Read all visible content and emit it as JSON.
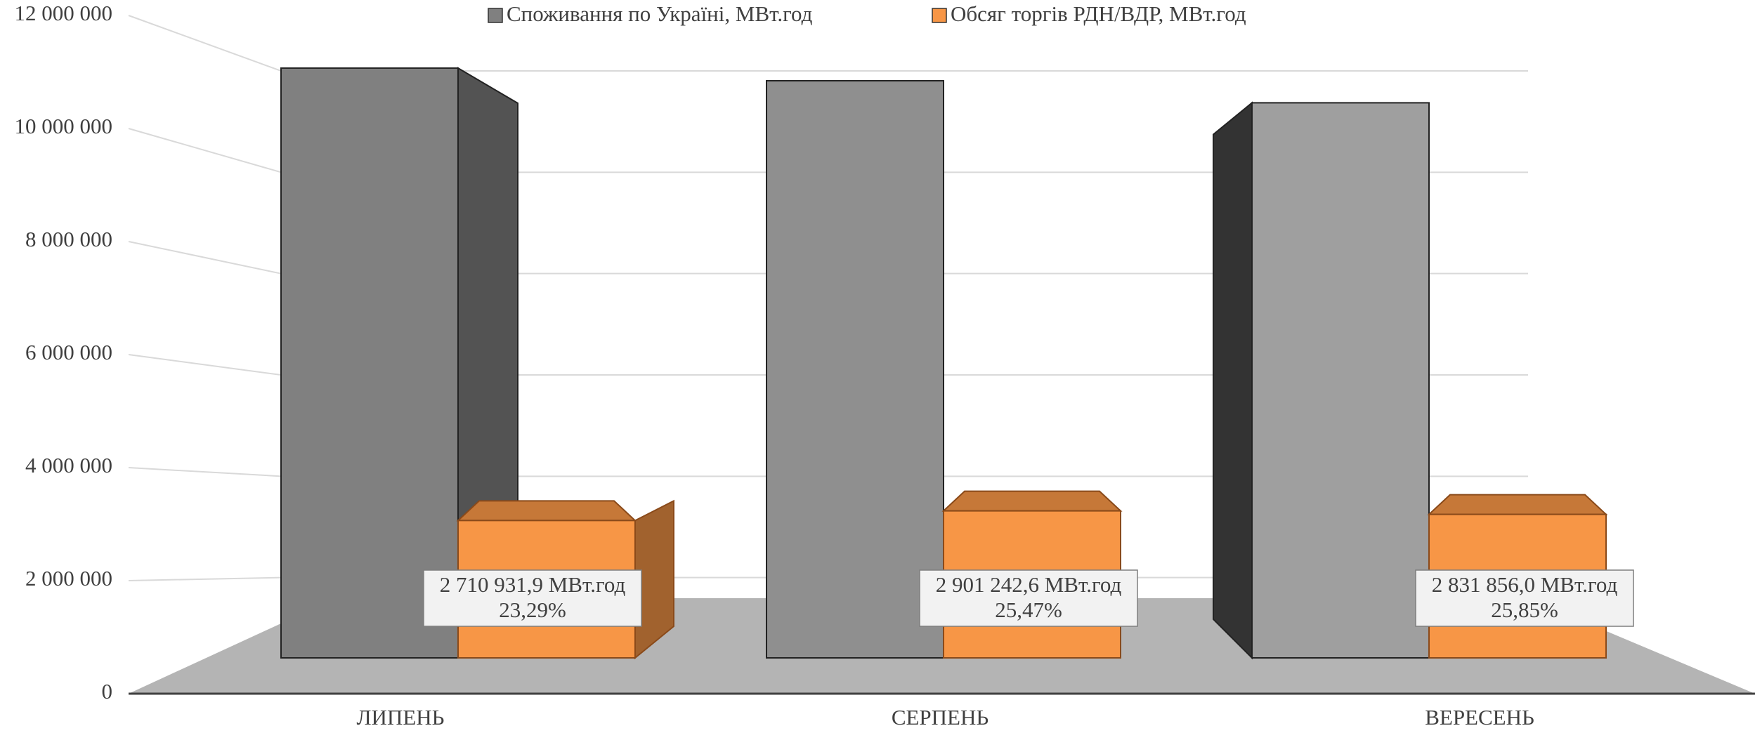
{
  "chart_data": {
    "type": "bar3d",
    "categories": [
      "ЛИПЕНЬ",
      "СЕРПЕНЬ",
      "ВЕРЕСЕНЬ"
    ],
    "series": [
      {
        "name": "Споживання по Україні, МВт.год",
        "color": "#808080",
        "values": [
          11640000,
          11390000,
          10955000
        ]
      },
      {
        "name": "Обсяг торгів РДН/ВДР, МВт.год",
        "color": "#f79646",
        "values": [
          2710931.9,
          2901242.6,
          2831856.0
        ],
        "value_labels": [
          "2 710 931,9 МВт.год",
          "2 901 242,6 МВт.год",
          "2 831 856,0 МВт.год"
        ],
        "annotations": [
          "23,29%",
          "25,47%",
          "25,85%"
        ]
      }
    ],
    "ylim": [
      0,
      12000000
    ],
    "yticks": [
      0,
      {
        "value": 2000000,
        "label": "2 000 000"
      },
      {
        "value": 4000000,
        "label": "4 000 000"
      },
      {
        "value": 6000000,
        "label": "6 000 000"
      },
      {
        "value": 8000000,
        "label": "8 000 000"
      },
      {
        "value": 10000000,
        "label": "10 000 000"
      },
      {
        "value": 12000000,
        "label": "12 000 000"
      }
    ],
    "grid": true,
    "legend": "top"
  }
}
